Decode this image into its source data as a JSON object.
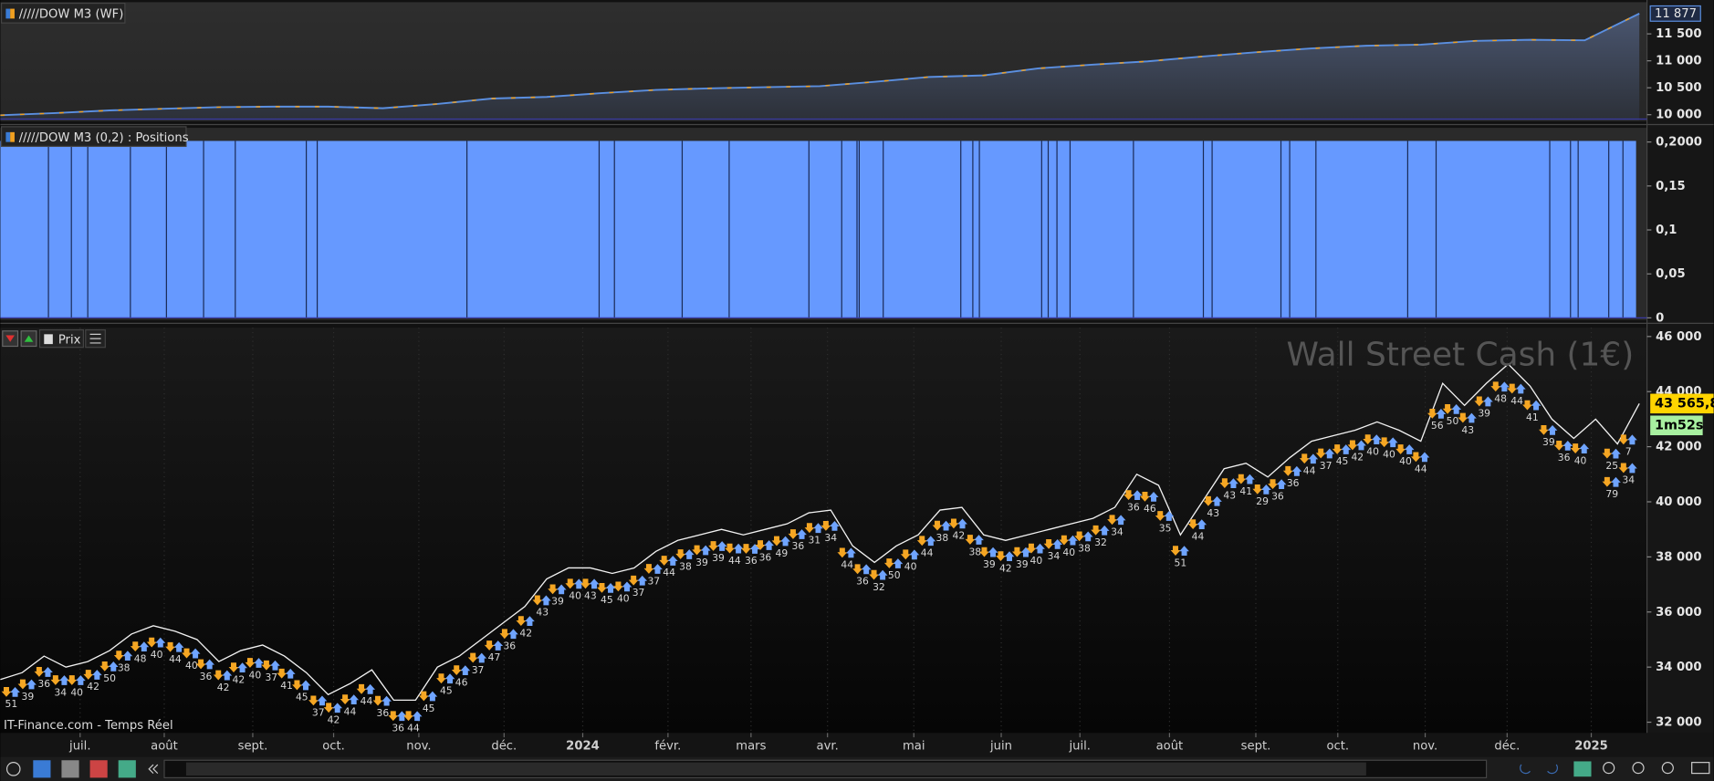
{
  "panels": [
    {
      "title": "/////DOW M3 (WF)",
      "type": "area",
      "x": [
        0,
        2.5,
        5,
        7.5,
        10,
        12.5,
        15,
        17.5,
        20,
        22.5,
        25,
        27.5,
        30,
        32.5,
        35,
        37.5,
        40,
        42.5,
        45,
        47.5,
        50,
        52.5,
        55,
        57.5,
        60,
        62.5,
        65,
        67.5,
        70,
        72.5,
        75
      ],
      "values": [
        9990,
        10030,
        10080,
        10110,
        10140,
        10150,
        10150,
        10120,
        10200,
        10300,
        10330,
        10400,
        10460,
        10490,
        10510,
        10530,
        10610,
        10700,
        10730,
        10860,
        10930,
        10990,
        11080,
        11160,
        11230,
        11280,
        11300,
        11370,
        11390,
        11380,
        11877
      ],
      "last_label": "11 877",
      "ylim": [
        9899,
        12088
      ],
      "yticks": [
        {
          "value": 10000,
          "label": "10 000"
        },
        {
          "value": 10500,
          "label": "10 500"
        },
        {
          "value": 11000,
          "label": "11 000"
        },
        {
          "value": 11500,
          "label": "11 500"
        }
      ]
    },
    {
      "title": "/////DOW M3 (0,2) : Positions",
      "type": "position",
      "value": 0.2,
      "changes": [
        2.2,
        3.25,
        4,
        5.95,
        7.6,
        9.3,
        10.75,
        14,
        14.5,
        21.35,
        27.4,
        28.1,
        31.2,
        33.35,
        37,
        38.5,
        39.2,
        39.3,
        40.4,
        43.95,
        44.5,
        44.8,
        47.65,
        47.95,
        48.35,
        48.95,
        51.85,
        55.05,
        55.45,
        58.6,
        59,
        60.2,
        64.4,
        65.7,
        70.9,
        71.85,
        72.2,
        73.6,
        74.25
      ],
      "ylim": [
        0,
        0.2
      ],
      "yticks": [
        0,
        {
          "value": 0.05,
          "label": "0,05"
        },
        {
          "value": 0.1,
          "label": "0,1"
        },
        {
          "value": 0.15,
          "label": "0,15"
        },
        {
          "value": 0.2,
          "label": "0,2000"
        }
      ]
    },
    {
      "title": "Prix",
      "type": "line",
      "watermark": "Wall Street Cash (1€)",
      "source": "IT-Finance.com - Temps Réel",
      "values": [
        33550,
        33800,
        34400,
        34000,
        34200,
        34600,
        35200,
        35500,
        35300,
        35000,
        34200,
        34600,
        34800,
        34400,
        33800,
        33000,
        33400,
        33900,
        32800,
        32800,
        34000,
        34400,
        35000,
        35600,
        36200,
        37200,
        37600,
        37600,
        37400,
        37600,
        38200,
        38600,
        38800,
        39000,
        38800,
        39000,
        39200,
        39600,
        39700,
        38400,
        37800,
        38400,
        38800,
        39700,
        39800,
        38800,
        38600,
        38800,
        39000,
        39200,
        39400,
        39800,
        41000,
        40600,
        38800,
        40000,
        41200,
        41400,
        40900,
        41600,
        42200,
        42400,
        42600,
        42900,
        42600,
        42200,
        44300,
        43500,
        44300,
        45000,
        44200,
        43000,
        42300,
        43000,
        42100,
        43565.8
      ],
      "last_label": "43 565,8",
      "timer": "1m52s",
      "ylim": [
        31650,
        46320
      ],
      "yticks": [
        {
          "value": 32000,
          "label": "32 000"
        },
        {
          "value": 34000,
          "label": "34 000"
        },
        {
          "value": 36000,
          "label": "36 000"
        },
        {
          "value": 38000,
          "label": "38 000"
        },
        {
          "value": 40000,
          "label": "40 000"
        },
        {
          "value": 42000,
          "label": "42 000"
        },
        {
          "value": 44000,
          "label": "44 000"
        },
        {
          "value": 46000,
          "label": "46 000"
        }
      ],
      "trades": [
        {
          "x": 0.5,
          "count": 51
        },
        {
          "x": 1.25,
          "count": 39
        },
        {
          "x": 2,
          "count": 36
        },
        {
          "x": 2.75,
          "count": 34
        },
        {
          "x": 3.5,
          "count": 40
        },
        {
          "x": 4.25,
          "count": 42
        },
        {
          "x": 5,
          "count": 50
        },
        {
          "x": 5.65,
          "count": 38
        },
        {
          "x": 6.4,
          "count": 48
        },
        {
          "x": 7.15,
          "count": 40
        },
        {
          "x": 8,
          "count": 44
        },
        {
          "x": 8.75,
          "count": 40
        },
        {
          "x": 9.4,
          "count": 36
        },
        {
          "x": 10.2,
          "count": 42
        },
        {
          "x": 10.9,
          "count": 42
        },
        {
          "x": 11.65,
          "count": 40
        },
        {
          "x": 12.4,
          "count": 37
        },
        {
          "x": 13.1,
          "count": 41
        },
        {
          "x": 13.8,
          "count": 45
        },
        {
          "x": 14.55,
          "count": 37
        },
        {
          "x": 15.25,
          "count": 42
        },
        {
          "x": 16,
          "count": 44
        },
        {
          "x": 16.75,
          "count": 44
        },
        {
          "x": 17.5,
          "count": 36
        },
        {
          "x": 18.2,
          "count": 36
        },
        {
          "x": 18.9,
          "count": 44
        },
        {
          "x": 19.6,
          "count": 45
        },
        {
          "x": 20.4,
          "count": 45
        },
        {
          "x": 21.1,
          "count": 46
        },
        {
          "x": 21.85,
          "count": 37
        },
        {
          "x": 22.6,
          "count": 47
        },
        {
          "x": 23.3,
          "count": 36
        },
        {
          "x": 24.05,
          "count": 42
        },
        {
          "x": 24.8,
          "count": 43
        },
        {
          "x": 25.5,
          "count": 39
        },
        {
          "x": 26.3,
          "count": 40
        },
        {
          "x": 27,
          "count": 43
        },
        {
          "x": 27.75,
          "count": 45
        },
        {
          "x": 28.5,
          "count": 40
        },
        {
          "x": 29.2,
          "count": 37
        },
        {
          "x": 29.9,
          "count": 37
        },
        {
          "x": 30.6,
          "count": 44
        },
        {
          "x": 31.35,
          "count": 38
        },
        {
          "x": 32.1,
          "count": 39
        },
        {
          "x": 32.85,
          "count": 39
        },
        {
          "x": 33.6,
          "count": 44
        },
        {
          "x": 34.35,
          "count": 36
        },
        {
          "x": 35,
          "count": 36
        },
        {
          "x": 35.75,
          "count": 49
        },
        {
          "x": 36.5,
          "count": 36
        },
        {
          "x": 37.25,
          "count": 31
        },
        {
          "x": 38,
          "count": 34
        },
        {
          "x": 38.75,
          "count": 44
        },
        {
          "x": 39.45,
          "count": 36
        },
        {
          "x": 40.2,
          "count": 32
        },
        {
          "x": 40.9,
          "count": 50
        },
        {
          "x": 41.65,
          "count": 40
        },
        {
          "x": 42.4,
          "count": 44
        },
        {
          "x": 43.1,
          "count": 38
        },
        {
          "x": 43.85,
          "count": 42
        },
        {
          "x": 44.6,
          "count": 38
        },
        {
          "x": 45.25,
          "count": 39
        },
        {
          "x": 46,
          "count": 42
        },
        {
          "x": 46.75,
          "count": 39
        },
        {
          "x": 47.4,
          "count": 40
        },
        {
          "x": 48.2,
          "count": 34
        },
        {
          "x": 48.9,
          "count": 40
        },
        {
          "x": 49.6,
          "count": 38
        },
        {
          "x": 50.35,
          "count": 32
        },
        {
          "x": 51.1,
          "count": 34
        },
        {
          "x": 51.85,
          "count": 36
        },
        {
          "x": 52.6,
          "count": 46
        },
        {
          "x": 53.3,
          "count": 35
        },
        {
          "x": 54,
          "count": 51
        },
        {
          "x": 54.8,
          "count": 44
        },
        {
          "x": 55.5,
          "count": 43
        },
        {
          "x": 56.25,
          "count": 43
        },
        {
          "x": 57,
          "count": 41
        },
        {
          "x": 57.75,
          "count": 29
        },
        {
          "x": 58.45,
          "count": 36
        },
        {
          "x": 59.15,
          "count": 36
        },
        {
          "x": 59.9,
          "count": 44
        },
        {
          "x": 60.65,
          "count": 37
        },
        {
          "x": 61.4,
          "count": 45
        },
        {
          "x": 62.1,
          "count": 42
        },
        {
          "x": 62.8,
          "count": 40
        },
        {
          "x": 63.55,
          "count": 40
        },
        {
          "x": 64.3,
          "count": 40
        },
        {
          "x": 65,
          "count": 44
        },
        {
          "x": 65.75,
          "count": 56
        },
        {
          "x": 66.45,
          "count": 50
        },
        {
          "x": 67.15,
          "count": 43
        },
        {
          "x": 67.9,
          "count": 39
        },
        {
          "x": 68.65,
          "count": 48
        },
        {
          "x": 69.4,
          "count": 44
        },
        {
          "x": 70.1,
          "count": 41
        },
        {
          "x": 70.85,
          "count": 39
        },
        {
          "x": 71.55,
          "count": 36
        },
        {
          "x": 72.3,
          "count": 40
        },
        {
          "x": 73.75,
          "count": 25
        },
        {
          "x": 74.5,
          "count": 7
        },
        {
          "x": 73.75,
          "count": 79
        },
        {
          "x": 74.5,
          "count": 34
        }
      ]
    }
  ],
  "xlim": [
    0,
    75
  ],
  "xticks": [
    {
      "value": 3.65,
      "label": "juil."
    },
    {
      "value": 7.5,
      "label": "août"
    },
    {
      "value": 11.55,
      "label": "sept."
    },
    {
      "value": 15.25,
      "label": "oct."
    },
    {
      "value": 19.15,
      "label": "nov."
    },
    {
      "value": 23.05,
      "label": "déc."
    },
    {
      "value": 26.65,
      "label": "2024"
    },
    {
      "value": 30.55,
      "label": "févr."
    },
    {
      "value": 34.35,
      "label": "mars"
    },
    {
      "value": 37.85,
      "label": "avr."
    },
    {
      "value": 41.8,
      "label": "mai"
    },
    {
      "value": 45.8,
      "label": "juin"
    },
    {
      "value": 49.4,
      "label": "juil."
    },
    {
      "value": 53.5,
      "label": "août"
    },
    {
      "value": 57.45,
      "label": "sept."
    },
    {
      "value": 61.2,
      "label": "oct."
    },
    {
      "value": 65.2,
      "label": "nov."
    },
    {
      "value": 68.95,
      "label": "déc."
    },
    {
      "value": 72.8,
      "label": "2025"
    }
  ]
}
